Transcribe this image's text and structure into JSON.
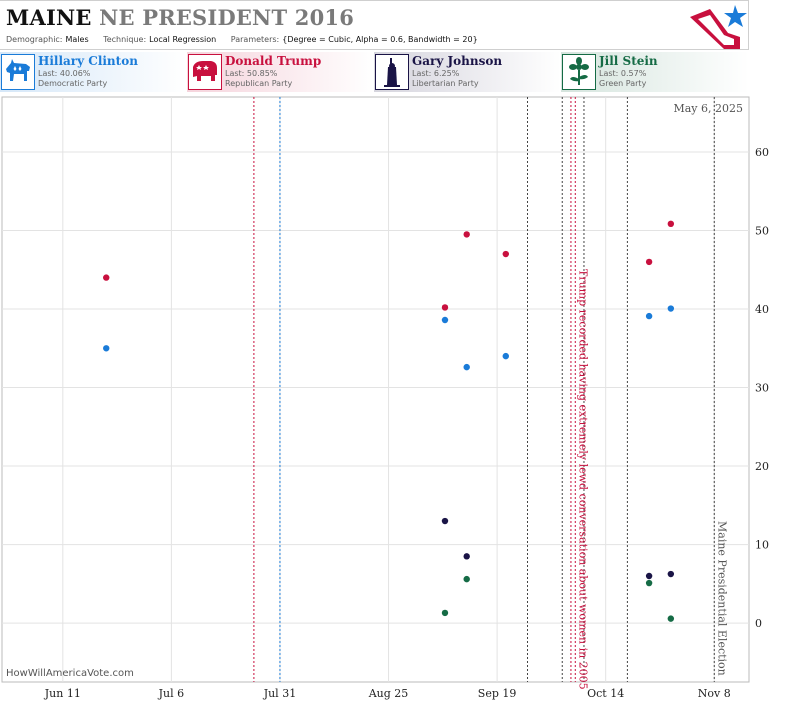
{
  "header": {
    "title_state": "MAINE",
    "title_rest": "NE PRESIDENT 2016",
    "demographic_label": "Demographic:",
    "demographic": "Males",
    "technique_label": "Technique:",
    "technique": "Local Regression",
    "parameters_label": "Parameters:",
    "parameters": "{Degree = Cubic, Alpha = 0.6, Bandwidth = 20}"
  },
  "candidates": [
    {
      "name": "Hillary Clinton",
      "last": "Last: 40.06%",
      "party": "Democratic Party",
      "color": "#1a7bd8",
      "icon": "donkey-icon"
    },
    {
      "name": "Donald Trump",
      "last": "Last: 50.85%",
      "party": "Republican Party",
      "color": "#c8103e",
      "icon": "elephant-icon"
    },
    {
      "name": "Gary Johnson",
      "last": "Last: 6.25%",
      "party": "Libertarian Party",
      "color": "#1a1446",
      "icon": "liberty-torch-icon"
    },
    {
      "name": "Jill Stein",
      "last": "Last: 0.57%",
      "party": "Green Party",
      "color": "#156b45",
      "icon": "flower-icon"
    }
  ],
  "watermark": "HowWillAmericaVote.com",
  "chart_data": {
    "type": "scatter",
    "date_label": "May 6, 2025",
    "x_domain": [
      "2016-05-28",
      "2016-11-16"
    ],
    "ylim": [
      -7.5,
      67
    ],
    "y_ticks": [
      0,
      10,
      20,
      30,
      40,
      50,
      60
    ],
    "x_ticks": [
      {
        "date": "2016-06-11",
        "label": "Jun 11"
      },
      {
        "date": "2016-07-06",
        "label": "Jul 6"
      },
      {
        "date": "2016-07-31",
        "label": "Jul 31"
      },
      {
        "date": "2016-08-25",
        "label": "Aug 25"
      },
      {
        "date": "2016-09-19",
        "label": "Sep 19"
      },
      {
        "date": "2016-10-14",
        "label": "Oct 14"
      },
      {
        "date": "2016-11-08",
        "label": "Nov 8"
      }
    ],
    "event_lines": [
      {
        "date": "2016-07-25",
        "color": "#c8103e"
      },
      {
        "date": "2016-07-31",
        "color": "#1a7bd8"
      },
      {
        "date": "2016-09-26",
        "color": "#444444"
      },
      {
        "date": "2016-10-04",
        "color": "#444444"
      },
      {
        "date": "2016-10-06",
        "color": "#c8103e"
      },
      {
        "date": "2016-10-07",
        "color": "#c8103e"
      },
      {
        "date": "2016-10-09",
        "color": "#444444"
      },
      {
        "date": "2016-10-19",
        "color": "#444444"
      },
      {
        "date": "2016-11-08",
        "color": "#444444"
      }
    ],
    "annotations": [
      {
        "date": "2016-10-07",
        "text": "Trump recorded having extremely lewd conversation about women in 2005",
        "color": "#c8103e"
      },
      {
        "date": "2016-11-08",
        "text": "Maine Presidential Election",
        "color": "#555555"
      }
    ],
    "series": [
      {
        "name": "Hillary Clinton",
        "color": "#1a7bd8",
        "points": [
          {
            "x": "2016-06-21",
            "y": 35.0
          },
          {
            "x": "2016-09-07",
            "y": 38.6
          },
          {
            "x": "2016-09-12",
            "y": 32.6
          },
          {
            "x": "2016-09-21",
            "y": 34.0
          },
          {
            "x": "2016-10-24",
            "y": 39.1
          },
          {
            "x": "2016-10-29",
            "y": 40.06
          }
        ]
      },
      {
        "name": "Donald Trump",
        "color": "#c8103e",
        "points": [
          {
            "x": "2016-06-21",
            "y": 44.0
          },
          {
            "x": "2016-09-07",
            "y": 40.2
          },
          {
            "x": "2016-09-12",
            "y": 49.5
          },
          {
            "x": "2016-09-21",
            "y": 47.0
          },
          {
            "x": "2016-10-24",
            "y": 46.0
          },
          {
            "x": "2016-10-29",
            "y": 50.85
          }
        ]
      },
      {
        "name": "Gary Johnson",
        "color": "#1a1446",
        "points": [
          {
            "x": "2016-09-07",
            "y": 13.0
          },
          {
            "x": "2016-09-12",
            "y": 8.5
          },
          {
            "x": "2016-10-24",
            "y": 6.0
          },
          {
            "x": "2016-10-29",
            "y": 6.25
          }
        ]
      },
      {
        "name": "Jill Stein",
        "color": "#156b45",
        "points": [
          {
            "x": "2016-09-07",
            "y": 1.3
          },
          {
            "x": "2016-09-12",
            "y": 5.6
          },
          {
            "x": "2016-10-24",
            "y": 5.1
          },
          {
            "x": "2016-10-29",
            "y": 0.57
          }
        ]
      }
    ]
  }
}
